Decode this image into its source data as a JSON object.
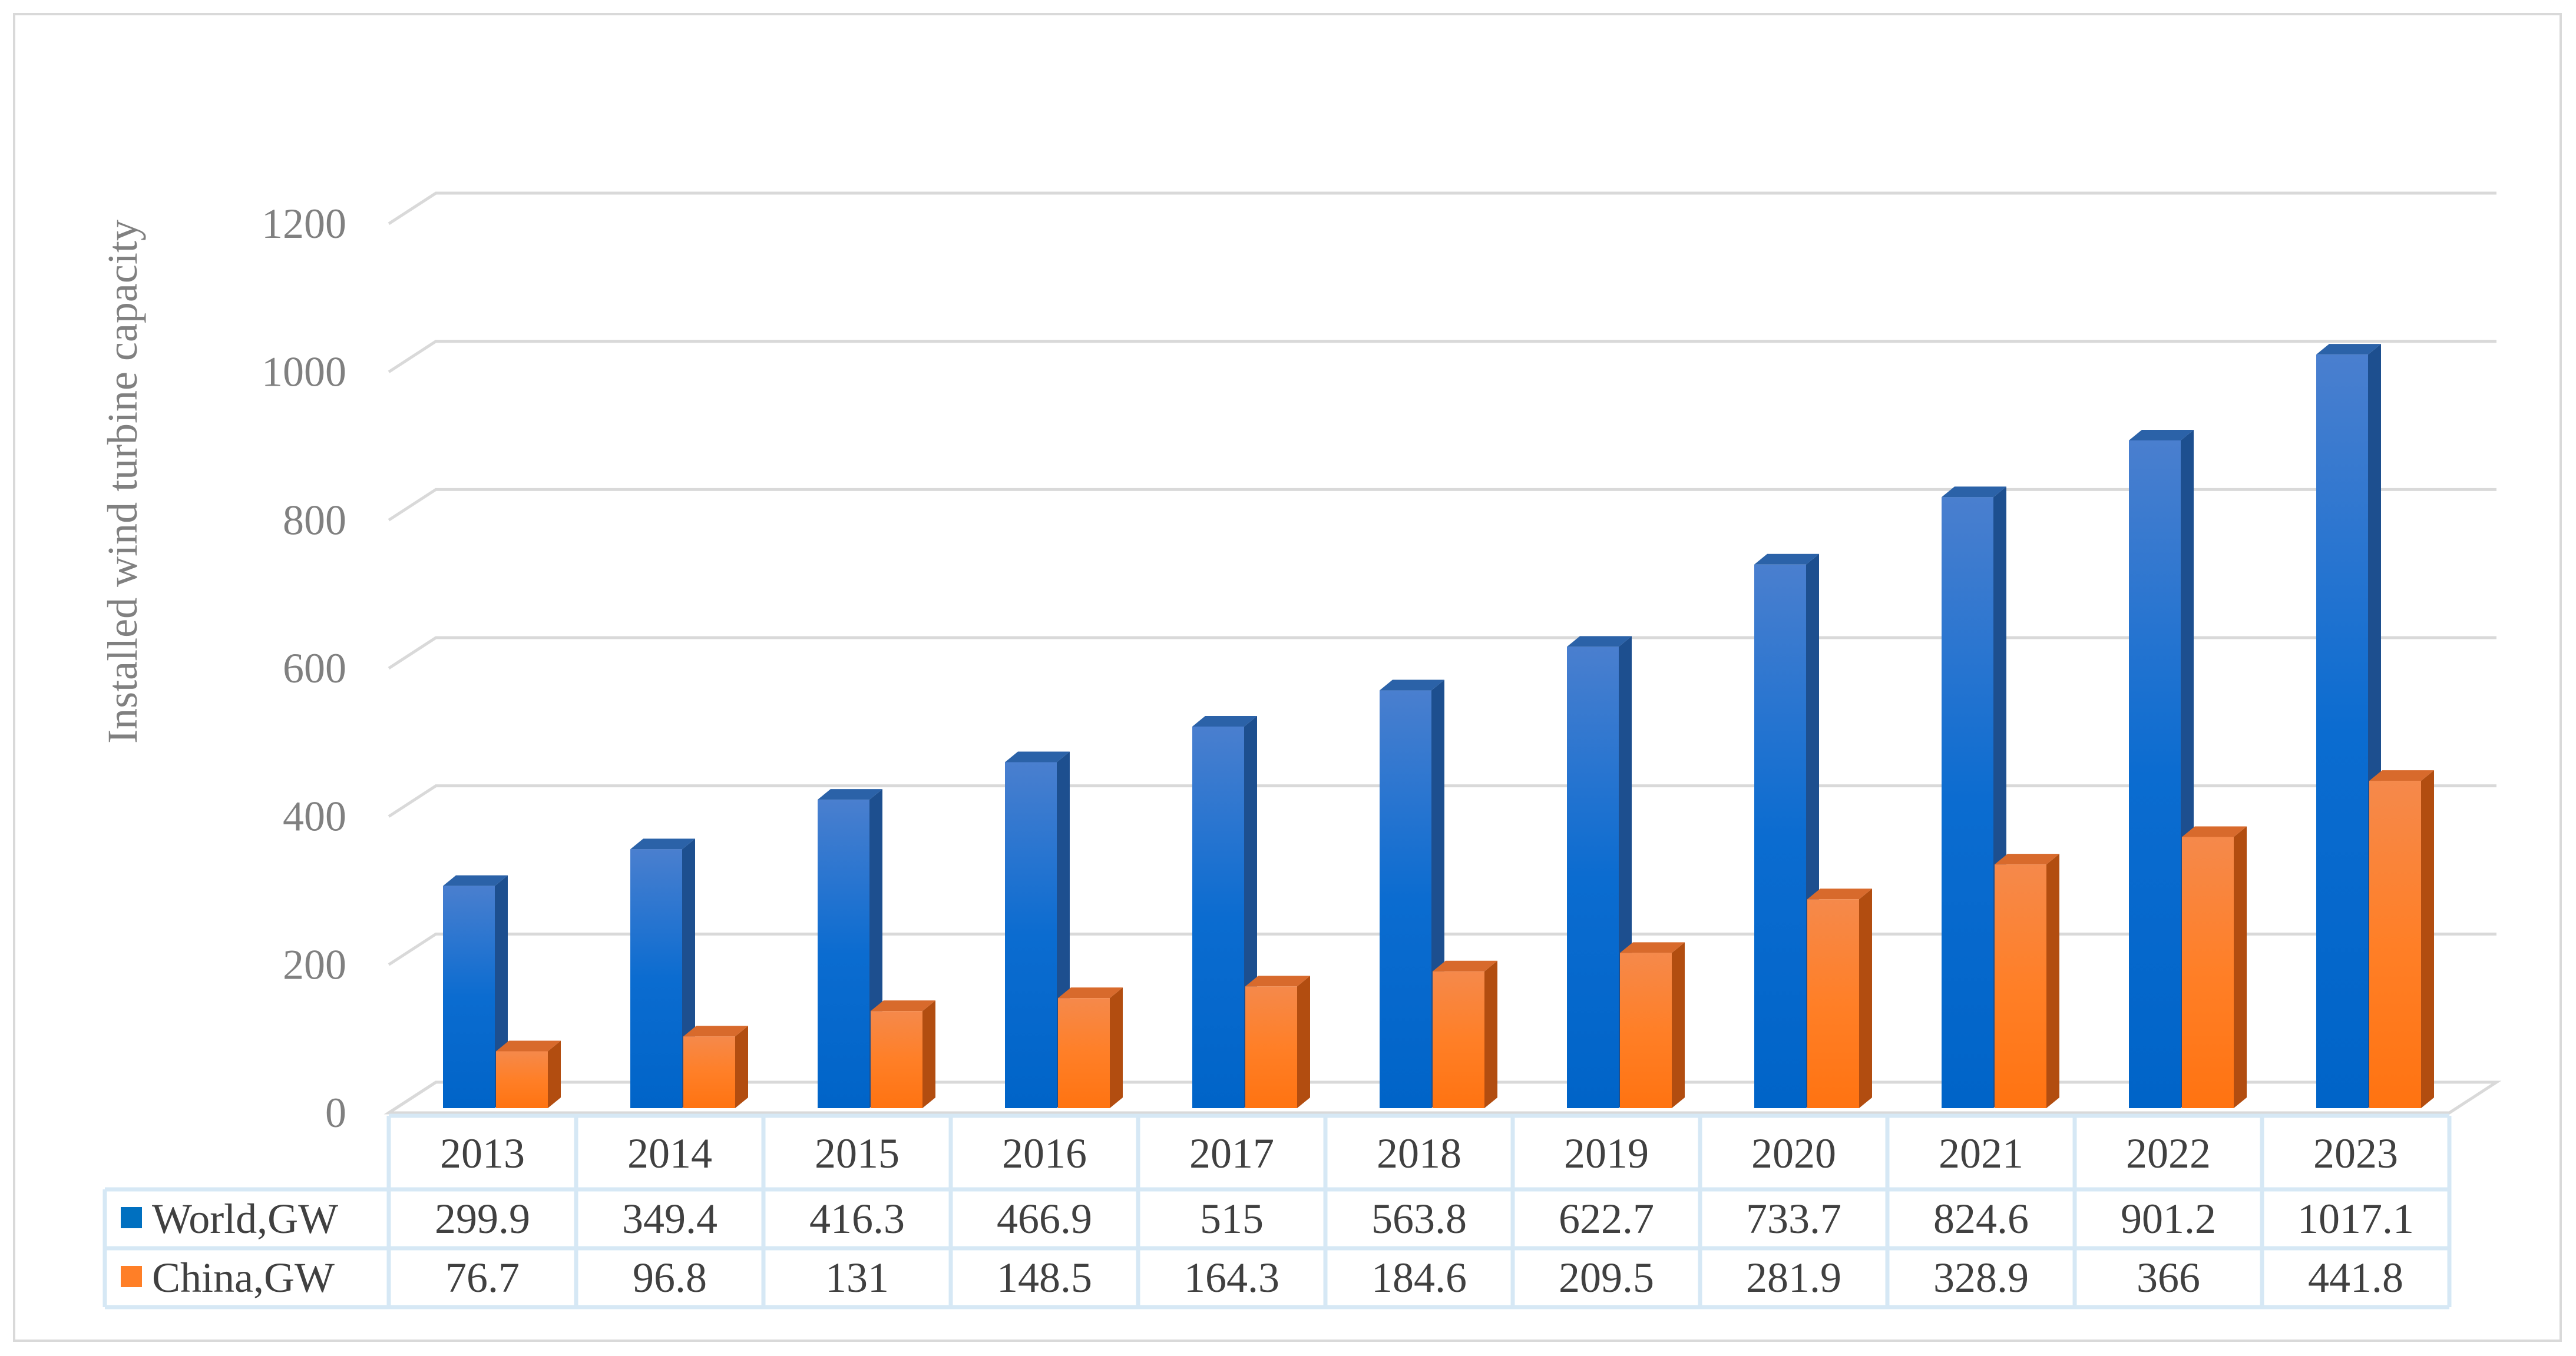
{
  "chart_data": {
    "type": "bar",
    "title": "",
    "xlabel": "",
    "ylabel": "Installed wind turbine capacity",
    "ylim": [
      0,
      1200
    ],
    "yticks": [
      "0",
      "200",
      "400",
      "600",
      "800",
      "1000",
      "1200"
    ],
    "categories": [
      "2013",
      "2014",
      "2015",
      "2016",
      "2017",
      "2018",
      "2019",
      "2020",
      "2021",
      "2022",
      "2023"
    ],
    "grid": true,
    "legend": "data-table",
    "series": [
      {
        "name": "World,GW",
        "color": "#0070c0",
        "values": [
          299.9,
          349.4,
          416.3,
          466.9,
          515,
          563.8,
          622.7,
          733.7,
          824.6,
          901.2,
          1017.1
        ],
        "labels": [
          "299.9",
          "349.4",
          "416.3",
          "466.9",
          "515",
          "563.8",
          "622.7",
          "733.7",
          "824.6",
          "901.2",
          "1017.1"
        ]
      },
      {
        "name": "China,GW",
        "color": "#ff7f27",
        "values": [
          76.7,
          96.8,
          131,
          148.5,
          164.3,
          184.6,
          209.5,
          281.9,
          328.9,
          366,
          441.8
        ],
        "labels": [
          "76.7",
          "96.8",
          "131",
          "148.5",
          "164.3",
          "184.6",
          "209.5",
          "281.9",
          "328.9",
          "366",
          "441.8"
        ]
      }
    ]
  }
}
